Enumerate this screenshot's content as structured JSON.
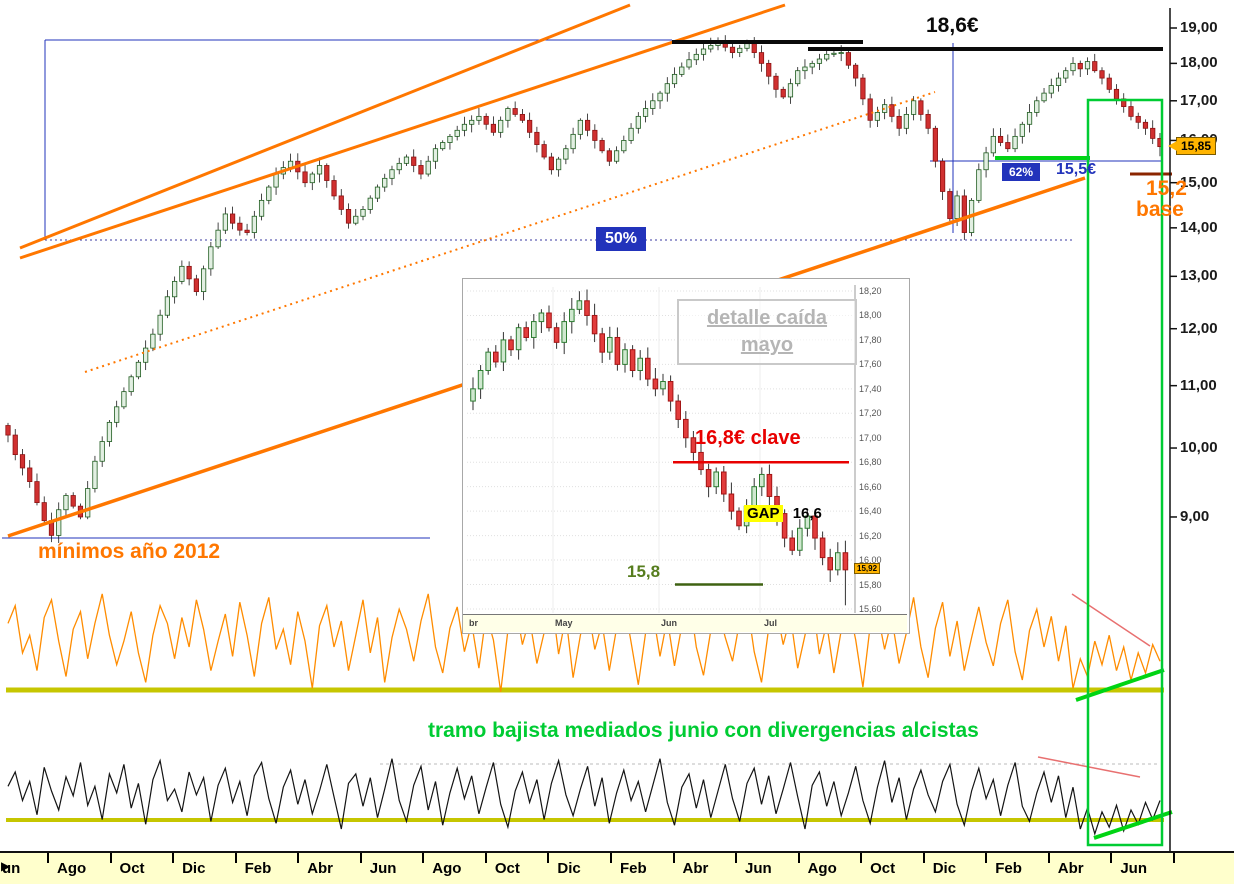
{
  "annotations": {
    "resistance": "18,6€",
    "fib50": "50%",
    "fib62": "62%",
    "support": "15,5€",
    "base_price": "15,2",
    "base_word": "base",
    "minimos": "mínimos año 2012",
    "divergence": "tramo bajista mediados junio con divergencias alcistas",
    "last_price": "15,85"
  },
  "icons": {
    "scroll_arrow": "▶"
  },
  "y_axis": {
    "labels": [
      "19,00",
      "18,00",
      "17,00",
      "16,00",
      "15,00",
      "14,00",
      "13,00",
      "12,00",
      "11,00",
      "10,00",
      "9,00"
    ],
    "prices": [
      19,
      18,
      17,
      16,
      15,
      14,
      13,
      12,
      11,
      10,
      9
    ]
  },
  "x_axis": {
    "labels": [
      "un",
      "Ago",
      "Oct",
      "Dic",
      "Feb",
      "Abr",
      "Jun",
      "Ago",
      "Oct",
      "Dic",
      "Feb",
      "Abr",
      "Jun",
      "Ago",
      "Oct",
      "Dic",
      "Feb",
      "Abr",
      "Jun"
    ]
  },
  "inset": {
    "title_line1": "detalle caída",
    "title_line2": "mayo",
    "clave": "16,8€ clave",
    "gap": "GAP",
    "gap_price": "16,6",
    "low": "15,8",
    "last_price": "15,92",
    "y_labels": [
      "18,20",
      "18,00",
      "17,80",
      "17,60",
      "17,40",
      "17,20",
      "17,00",
      "16,80",
      "16,60",
      "16,40",
      "16,20",
      "16,00",
      "15,80",
      "15,60"
    ],
    "y_prices": [
      18.2,
      18.0,
      17.8,
      17.6,
      17.4,
      17.2,
      17.0,
      16.8,
      16.6,
      16.4,
      16.2,
      16.0,
      15.8,
      15.6
    ],
    "x_labels": [
      "br",
      "May",
      "Jun",
      "Jul"
    ]
  },
  "colors": {
    "channel_orange": "#ff7700",
    "oscillator_orange": "#ff8c00",
    "olive_line": "#c6c600",
    "signal_green": "#00cc33",
    "bright_green": "#00d413",
    "fib_blue": "#2233bb",
    "alert_red": "#e80000",
    "bearish_red": "#e87070",
    "base_dark_red": "#8b2500",
    "tag_yellow": "#ffb400",
    "axis_strip_yellow": "#ffffcc",
    "gap_highlight_yellow": "#ffff00"
  },
  "chart_data": [
    {
      "type": "candlestick",
      "name": "main price series (log scale)",
      "scale": "log",
      "ylim": [
        8.6,
        19.2
      ],
      "x_labels": [
        "un",
        "Ago",
        "Oct",
        "Dic",
        "Feb",
        "Abr",
        "Jun",
        "Ago",
        "Oct",
        "Dic",
        "Feb",
        "Abr",
        "Jun",
        "Ago",
        "Oct",
        "Dic",
        "Feb",
        "Abr",
        "Jun"
      ],
      "levels": {
        "resistance": 18.6,
        "fib50": 13.7,
        "fib62_support": 15.5,
        "channel_base": 15.2,
        "lows_2012": 8.7,
        "last": 15.85
      },
      "closes": [
        10.2,
        9.9,
        9.7,
        9.5,
        9.2,
        8.95,
        8.75,
        9.1,
        9.3,
        9.15,
        9.0,
        9.4,
        9.8,
        10.1,
        10.4,
        10.65,
        10.9,
        11.15,
        11.4,
        11.65,
        11.9,
        12.25,
        12.6,
        12.9,
        13.2,
        12.95,
        12.7,
        13.15,
        13.6,
        13.95,
        14.3,
        14.1,
        13.95,
        13.9,
        14.25,
        14.6,
        14.9,
        15.2,
        15.35,
        15.5,
        15.25,
        15.0,
        15.2,
        15.4,
        15.05,
        14.7,
        14.4,
        14.1,
        14.25,
        14.4,
        14.65,
        14.9,
        15.1,
        15.3,
        15.45,
        15.6,
        15.4,
        15.2,
        15.5,
        15.8,
        15.95,
        16.1,
        16.25,
        16.4,
        16.5,
        16.6,
        16.4,
        16.2,
        16.5,
        16.8,
        16.65,
        16.5,
        16.2,
        15.9,
        15.6,
        15.3,
        15.55,
        15.8,
        16.15,
        16.5,
        16.25,
        16.0,
        15.75,
        15.5,
        15.75,
        16.0,
        16.3,
        16.6,
        16.8,
        17.0,
        17.2,
        17.45,
        17.7,
        17.9,
        18.1,
        18.25,
        18.4,
        18.5,
        18.6,
        18.45,
        18.3,
        18.42,
        18.55,
        18.3,
        18.0,
        17.65,
        17.3,
        17.1,
        17.45,
        17.8,
        17.9,
        18.0,
        18.12,
        18.25,
        18.28,
        18.3,
        17.95,
        17.6,
        17.05,
        16.5,
        16.7,
        16.9,
        16.6,
        16.3,
        16.65,
        17.0,
        16.65,
        16.3,
        15.5,
        14.8,
        14.2,
        14.7,
        13.9,
        14.6,
        15.3,
        15.7,
        16.1,
        15.95,
        15.8,
        16.1,
        16.4,
        16.7,
        17.0,
        17.2,
        17.4,
        17.6,
        17.8,
        18.0,
        17.85,
        18.05,
        17.8,
        17.6,
        17.3,
        17.05,
        16.85,
        16.6,
        16.45,
        16.3,
        16.05,
        15.85
      ]
    },
    {
      "type": "candlestick",
      "name": "detalle caída mayo (inset)",
      "scale": "linear",
      "ylim": [
        15.6,
        18.2
      ],
      "x_labels": [
        "br",
        "May",
        "Jun",
        "Jul"
      ],
      "levels": {
        "clave": 16.8,
        "gap": 16.6,
        "low": 15.8,
        "last": 15.92
      },
      "closes": [
        17.4,
        17.55,
        17.7,
        17.62,
        17.8,
        17.72,
        17.9,
        17.82,
        17.95,
        18.02,
        17.9,
        17.78,
        17.95,
        18.05,
        18.12,
        18.0,
        17.85,
        17.7,
        17.82,
        17.6,
        17.72,
        17.55,
        17.65,
        17.48,
        17.4,
        17.46,
        17.3,
        17.15,
        17.0,
        16.88,
        16.74,
        16.6,
        16.72,
        16.54,
        16.4,
        16.28,
        16.44,
        16.6,
        16.7,
        16.52,
        16.38,
        16.18,
        16.08,
        16.26,
        16.36,
        16.18,
        16.02,
        15.92,
        16.06,
        15.92
      ]
    },
    {
      "type": "line",
      "name": "upper oscillator (orange)",
      "range": [
        0,
        100
      ],
      "values": [
        70,
        85,
        45,
        60,
        30,
        75,
        90,
        55,
        25,
        65,
        80,
        40,
        70,
        95,
        60,
        35,
        55,
        80,
        45,
        20,
        60,
        85,
        70,
        40,
        75,
        50,
        90,
        65,
        30,
        55,
        78,
        42,
        88,
        60,
        25,
        70,
        92,
        48,
        65,
        35,
        80,
        55,
        15,
        68,
        85,
        50,
        72,
        30,
        60,
        90,
        45,
        75,
        20,
        58,
        82,
        65,
        38,
        72,
        95,
        50,
        28,
        66,
        84,
        46,
        70,
        32,
        78,
        56,
        12,
        64,
        88,
        52,
        74,
        36,
        62,
        92,
        44,
        76,
        24,
        60,
        86,
        48,
        70,
        30,
        66,
        90,
        54,
        18,
        62,
        80,
        42,
        74,
        34,
        68,
        94,
        50,
        26,
        64,
        82,
        58,
        38,
        72,
        88,
        46,
        20,
        66,
        84,
        52,
        76,
        32,
        60,
        90,
        44,
        70,
        28,
        64,
        86,
        56,
        16,
        68,
        80,
        48,
        74,
        36,
        62,
        92,
        50,
        24,
        66,
        88,
        42,
        72,
        30,
        58,
        84,
        54,
        34,
        70,
        90,
        46,
        22,
        64,
        82,
        50,
        76,
        38,
        68,
        15,
        40,
        25,
        55,
        35,
        60,
        30,
        50,
        22,
        45,
        28,
        52,
        38
      ]
    },
    {
      "type": "line",
      "name": "lower oscillator (black)",
      "range": [
        0,
        100
      ],
      "values": [
        65,
        80,
        50,
        70,
        35,
        85,
        60,
        40,
        75,
        55,
        90,
        45,
        65,
        30,
        78,
        58,
        88,
        42,
        68,
        25,
        72,
        92,
        50,
        62,
        38,
        80,
        56,
        74,
        28,
        66,
        84,
        48,
        70,
        34,
        76,
        90,
        52,
        26,
        64,
        82,
        46,
        72,
        36,
        60,
        88,
        54,
        20,
        68,
        78,
        44,
        74,
        32,
        62,
        94,
        50,
        28,
        66,
        86,
        40,
        70,
        24,
        58,
        84,
        52,
        76,
        36,
        64,
        90,
        46,
        22,
        60,
        80,
        48,
        72,
        30,
        68,
        92,
        56,
        34,
        62,
        86,
        44,
        74,
        26,
        58,
        82,
        50,
        70,
        38,
        66,
        94,
        48,
        24,
        64,
        78,
        42,
        72,
        32,
        60,
        88,
        52,
        28,
        68,
        84,
        46,
        76,
        36,
        62,
        90,
        54,
        20,
        66,
        80,
        44,
        70,
        34,
        58,
        86,
        50,
        26,
        64,
        92,
        48,
        74,
        30,
        62,
        82,
        56,
        38,
        70,
        88,
        46,
        24,
        60,
        84,
        52,
        72,
        34,
        66,
        90,
        44,
        28,
        58,
        80,
        48,
        76,
        32,
        64,
        20,
        42,
        15,
        38,
        22,
        45,
        18,
        40,
        25,
        48,
        30,
        50
      ]
    }
  ]
}
